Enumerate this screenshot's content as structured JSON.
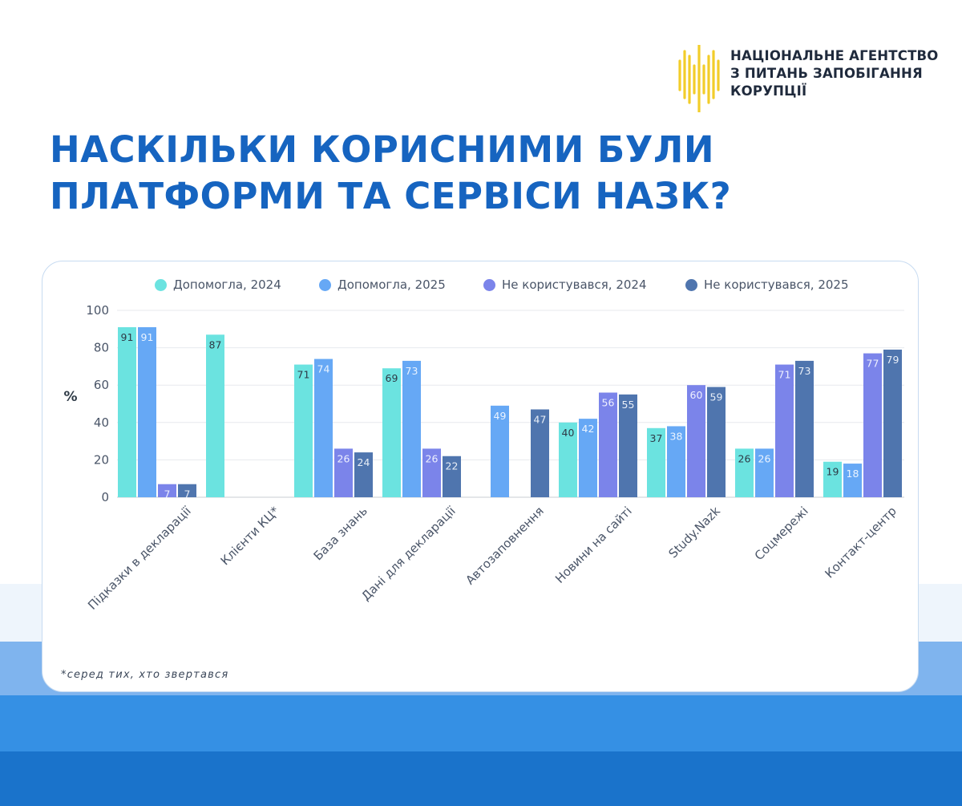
{
  "logo": {
    "name_lines": [
      "НАЦІОНАЛЬНЕ АГЕНТСТВО",
      "З ПИТАНЬ ЗАПОБІГАННЯ",
      "КОРУПЦІЇ"
    ],
    "mark_color": "#f2cd2a"
  },
  "title_lines": [
    "НАСКІЛЬКИ КОРИСНИМИ БУЛИ",
    "ПЛАТФОРМИ ТА СЕРВІСИ НАЗК?"
  ],
  "footnote": "*серед тих, хто звертався",
  "colors": {
    "title": "#1664c0",
    "band_dark": "#1a73cb",
    "band_mid": "#3590e4",
    "band_light": "#7fb4ee"
  },
  "chart_data": {
    "type": "bar",
    "ylabel": "%",
    "ylim": [
      0,
      100
    ],
    "yticks": [
      0,
      20,
      40,
      60,
      80,
      100
    ],
    "grid": true,
    "legend_position": "top",
    "categories": [
      "Підказки в декларації",
      "Клієнти КЦ*",
      "База знань",
      "Дані для декларації",
      "Автозаповнення",
      "Новини на сайті",
      "Study.Nazk",
      "Соцмережі",
      "Контакт-центр"
    ],
    "series": [
      {
        "name": "Допомогла, 2024",
        "color": "#6be3e0",
        "label_color": "#2e3a46",
        "values": [
          91,
          87,
          71,
          69,
          null,
          40,
          37,
          26,
          19
        ]
      },
      {
        "name": "Допомогла, 2025",
        "color": "#66a8f5",
        "label_color": "#eaf3ff",
        "values": [
          91,
          null,
          74,
          73,
          49,
          42,
          38,
          26,
          18
        ]
      },
      {
        "name": "Не користувався, 2024",
        "color": "#7b84ea",
        "label_color": "#eef0ff",
        "values": [
          7,
          null,
          26,
          26,
          null,
          56,
          60,
          71,
          77
        ]
      },
      {
        "name": "Не користувався, 2025",
        "color": "#4f75ae",
        "label_color": "#e8eef7",
        "values": [
          7,
          null,
          24,
          22,
          47,
          55,
          59,
          73,
          79
        ]
      }
    ]
  }
}
